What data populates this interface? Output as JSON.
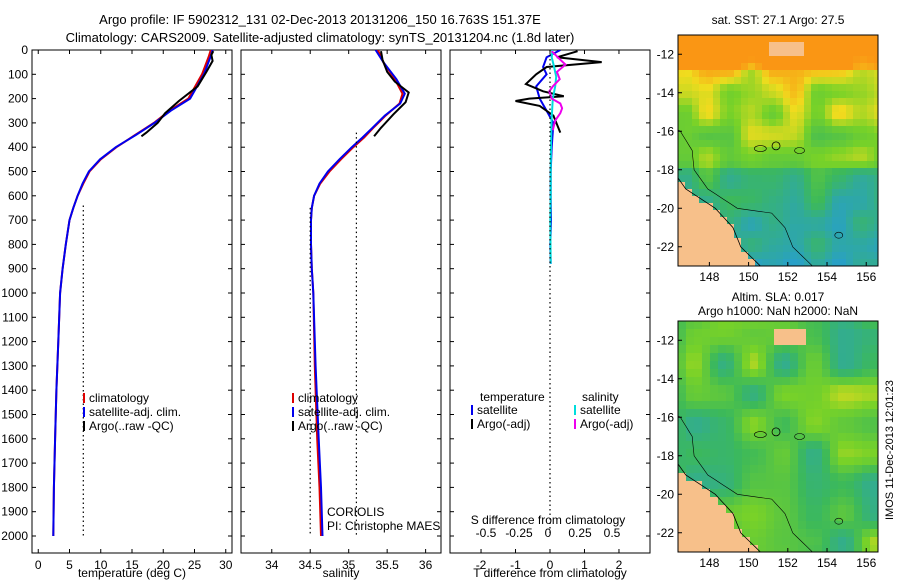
{
  "header": {
    "line1": "Argo profile: IF 5902312_131 02-Dec-2013 20131206_150 16.763S 151.37E",
    "line2": "Climatology: CARS2009. Satellite-adjusted climatology: synTS_20131204.nc (1.8d later)"
  },
  "stamp": "IMOS 11-Dec-2013 12:01:23",
  "colors": {
    "climatology": "#dd0000",
    "satellite_clim": "#0000ee",
    "argo": "#000000",
    "s_satellite": "#00dddd",
    "s_argo": "#ee00ee",
    "land": "#f7c08a",
    "ocean_green": "#33b833"
  },
  "depth_axis": {
    "ticks": [
      0,
      100,
      200,
      300,
      400,
      500,
      600,
      700,
      800,
      900,
      1000,
      1100,
      1200,
      1300,
      1400,
      1500,
      1600,
      1700,
      1800,
      1900,
      2000
    ],
    "range": [
      0,
      2070
    ]
  },
  "chart_data": [
    {
      "type": "line",
      "id": "temperature",
      "xlabel": "temperature (deg C)",
      "xlim": [
        -1,
        31
      ],
      "ylim": [
        2070,
        0
      ],
      "xticks": [
        0,
        5,
        10,
        15,
        20,
        25,
        30
      ],
      "legend": [
        "climatology",
        "satellite-adj. clim.",
        "Argo(..raw -QC)"
      ],
      "legend_placement": "lower-right",
      "series": [
        {
          "name": "climatology",
          "key": "climatology",
          "x": [
            27.6,
            27.3,
            26.2,
            24.0,
            21.0,
            18.5,
            15.5,
            12.5,
            10.0,
            8.2,
            7.2,
            6.3,
            5.6,
            5.0,
            4.4,
            3.9,
            3.5,
            3.2,
            2.9,
            2.7,
            2.5,
            2.4
          ],
          "y": [
            0,
            25,
            100,
            200,
            250,
            300,
            350,
            400,
            450,
            500,
            550,
            600,
            650,
            700,
            800,
            900,
            1000,
            1200,
            1400,
            1600,
            1800,
            2000
          ]
        },
        {
          "name": "satellite-adj. clim.",
          "key": "satellite_clim",
          "x": [
            27.9,
            27.6,
            26.5,
            24.3,
            21.2,
            18.6,
            15.6,
            12.4,
            9.9,
            8.1,
            7.1,
            6.3,
            5.6,
            5.0,
            4.4,
            3.9,
            3.5,
            3.2,
            2.9,
            2.7,
            2.5,
            2.4
          ],
          "y": [
            0,
            25,
            100,
            200,
            250,
            300,
            350,
            400,
            450,
            500,
            550,
            600,
            650,
            700,
            800,
            900,
            1000,
            1200,
            1400,
            1600,
            1800,
            2000
          ]
        },
        {
          "name": "Argo(..raw -QC)",
          "key": "argo",
          "x": [
            28.0,
            27.7,
            27.9,
            26.9,
            25.5,
            22.5,
            20.3,
            19.1,
            17.3,
            16.5
          ],
          "y": [
            5,
            20,
            45,
            90,
            150,
            210,
            260,
            300,
            340,
            355
          ]
        },
        {
          "name": "climatology mean",
          "key": "argo",
          "dotted": true,
          "x": [
            7.2,
            7.2
          ],
          "y": [
            640,
            2000
          ]
        }
      ]
    },
    {
      "type": "line",
      "id": "salinity",
      "xlabel": "salinity",
      "xlim": [
        33.6,
        36.2
      ],
      "ylim": [
        2070,
        0
      ],
      "xticks": [
        34,
        34.5,
        35,
        35.5,
        36
      ],
      "xticklabels": [
        "34",
        "34.5",
        "35",
        "35.5",
        "36"
      ],
      "legend": [
        "climatology",
        "satellite-adj. clim.",
        "Argo(..raw -QC)"
      ],
      "legend_placement": "lower-right",
      "annotation": [
        "CORIOLIS",
        "PI: Christophe MAES"
      ],
      "series": [
        {
          "name": "climatology",
          "key": "climatology",
          "x": [
            35.38,
            35.45,
            35.6,
            35.7,
            35.66,
            35.48,
            35.32,
            35.2,
            35.06,
            34.9,
            34.75,
            34.63,
            34.55,
            34.52,
            34.51,
            34.51,
            34.52,
            34.54,
            34.56,
            34.59,
            34.62,
            34.64
          ],
          "y": [
            0,
            50,
            120,
            180,
            220,
            270,
            320,
            360,
            400,
            450,
            500,
            550,
            600,
            650,
            700,
            800,
            900,
            1000,
            1300,
            1600,
            1800,
            2000
          ]
        },
        {
          "name": "satellite-adj. clim.",
          "key": "satellite_clim",
          "x": [
            35.35,
            35.45,
            35.62,
            35.73,
            35.67,
            35.47,
            35.31,
            35.18,
            35.04,
            34.88,
            34.73,
            34.62,
            34.55,
            34.52,
            34.51,
            34.51,
            34.52,
            34.54,
            34.57,
            34.61,
            34.64,
            34.66
          ],
          "y": [
            0,
            50,
            120,
            180,
            220,
            270,
            320,
            360,
            400,
            450,
            500,
            550,
            600,
            650,
            700,
            800,
            900,
            1000,
            1300,
            1600,
            1800,
            2000
          ]
        },
        {
          "name": "Argo(..raw -QC)",
          "key": "argo",
          "x": [
            35.42,
            35.44,
            35.5,
            35.6,
            35.78,
            35.74,
            35.58,
            35.42,
            35.33
          ],
          "y": [
            5,
            40,
            90,
            130,
            175,
            215,
            265,
            320,
            355
          ]
        },
        {
          "name": "mean lines",
          "key": "argo",
          "dotted": true,
          "x": [
            35.1,
            35.1
          ],
          "y": [
            340,
            2000
          ]
        },
        {
          "name": "mean lines 2",
          "key": "argo",
          "dotted": true,
          "x": [
            34.5,
            34.5
          ],
          "y": [
            650,
            2000
          ]
        }
      ]
    },
    {
      "type": "line",
      "id": "difference",
      "xlabel": "T difference from climatology",
      "xlabel_top": "S difference from climatology",
      "xlim": [
        -2.9,
        2.9
      ],
      "ylim": [
        2070,
        0
      ],
      "xticks": [
        -2,
        -1,
        0,
        1,
        2
      ],
      "xticks_S": [
        -0.5,
        -0.25,
        0,
        0.25,
        0.5
      ],
      "xticklabels_S": [
        "-0.5",
        "-0.25",
        "0",
        "0.25",
        "0.5"
      ],
      "legend_t_title": "temperature",
      "legend_s_title": "salinity",
      "legend": [
        "satellite",
        "Argo(-adj)",
        "satellite",
        "Argo(-adj)"
      ],
      "legend_placement": "lower-center",
      "series": [
        {
          "name": "T satellite",
          "key": "satellite_clim",
          "x": [
            0.3,
            -0.1,
            -0.2,
            -0.1,
            -0.4,
            -0.3,
            -0.1,
            0.1,
            0.05,
            0.02,
            0.02,
            0.03,
            0.02,
            0.01,
            0.02
          ],
          "y": [
            0,
            30,
            70,
            100,
            150,
            200,
            250,
            300,
            400,
            500,
            600,
            700,
            750,
            800,
            880
          ]
        },
        {
          "name": "T Argo(-adj)",
          "key": "argo",
          "x": [
            0.8,
            0.2,
            1.5,
            -0.1,
            -0.4,
            -0.7,
            -0.2,
            0.4,
            -0.6,
            -1.0,
            -0.3,
            0.1,
            0.3
          ],
          "y": [
            5,
            30,
            50,
            70,
            100,
            140,
            170,
            190,
            200,
            210,
            230,
            270,
            340
          ]
        },
        {
          "name": "S satellite",
          "key": "s_satellite",
          "x": [
            0.07,
            0.05,
            0.12,
            0.18,
            0.15,
            0.08,
            0.06,
            0.04,
            0.03,
            0.02,
            0.02,
            0.01,
            0.02
          ],
          "y": [
            0,
            30,
            70,
            110,
            150,
            200,
            250,
            300,
            400,
            500,
            600,
            700,
            880
          ]
        },
        {
          "name": "S Argo(-adj)",
          "key": "s_argo",
          "x": [
            0.05,
            0.3,
            0.45,
            0.2,
            0.28,
            0.08,
            -0.02,
            0.05,
            0.3,
            0.35,
            0.3,
            0.15,
            0.08
          ],
          "y": [
            5,
            40,
            60,
            90,
            120,
            150,
            170,
            200,
            220,
            240,
            260,
            290,
            330
          ]
        },
        {
          "name": "zero",
          "key": "argo",
          "dotted": true,
          "x": [
            0,
            0
          ],
          "y": [
            0,
            2000
          ]
        }
      ]
    },
    {
      "type": "heatmap",
      "id": "sst_map",
      "title": "sat. SST: 27.1 Argo: 27.5",
      "xticks": [
        148,
        150,
        152,
        154,
        156
      ],
      "yticks": [
        -12,
        -14,
        -16,
        -18,
        -20,
        -22
      ],
      "xlim": [
        146.4,
        156.6
      ],
      "ylim": [
        -23,
        -11
      ]
    },
    {
      "type": "heatmap",
      "id": "sla_map",
      "title_lines": [
        "Altim. SLA: 0.017",
        "Argo h1000: NaN h2000: NaN"
      ],
      "xticks": [
        148,
        150,
        152,
        154,
        156
      ],
      "yticks": [
        -12,
        -14,
        -16,
        -18,
        -20,
        -22
      ],
      "xlim": [
        146.4,
        156.6
      ],
      "ylim": [
        -23,
        -11
      ]
    }
  ]
}
